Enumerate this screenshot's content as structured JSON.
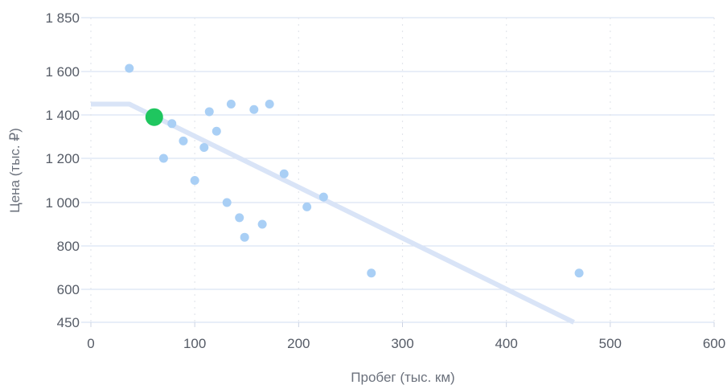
{
  "chart_data": {
    "type": "scatter",
    "xlabel": "Пробег (тыс. км)",
    "ylabel": "Цена (тыс. ₽)",
    "xlim": [
      0,
      600
    ],
    "ylim": [
      450,
      1850
    ],
    "x_ticks": [
      0,
      100,
      200,
      300,
      400,
      500,
      600
    ],
    "x_tick_labels": [
      "0",
      "100",
      "200",
      "300",
      "400",
      "500",
      "600"
    ],
    "y_ticks": [
      450,
      600,
      800,
      1000,
      1200,
      1400,
      1600,
      1850
    ],
    "y_tick_labels": [
      "450",
      "600",
      "800",
      "1 000",
      "1 200",
      "1 400",
      "1 600",
      "1 850"
    ],
    "grid": true,
    "points": [
      {
        "x": 37,
        "y": 1615
      },
      {
        "x": 78,
        "y": 1360
      },
      {
        "x": 89,
        "y": 1280
      },
      {
        "x": 70,
        "y": 1200
      },
      {
        "x": 100,
        "y": 1100
      },
      {
        "x": 114,
        "y": 1415
      },
      {
        "x": 121,
        "y": 1325
      },
      {
        "x": 109,
        "y": 1250
      },
      {
        "x": 135,
        "y": 1450
      },
      {
        "x": 157,
        "y": 1425
      },
      {
        "x": 172,
        "y": 1450
      },
      {
        "x": 131,
        "y": 1000
      },
      {
        "x": 143,
        "y": 930
      },
      {
        "x": 148,
        "y": 840
      },
      {
        "x": 165,
        "y": 900
      },
      {
        "x": 186,
        "y": 1130
      },
      {
        "x": 224,
        "y": 1025
      },
      {
        "x": 208,
        "y": 980
      },
      {
        "x": 270,
        "y": 675
      },
      {
        "x": 470,
        "y": 675
      }
    ],
    "highlight_point": {
      "x": 61,
      "y": 1390
    },
    "trend_line": [
      {
        "x": 0,
        "y": 1450
      },
      {
        "x": 37,
        "y": 1450
      },
      {
        "x": 465,
        "y": 450
      }
    ],
    "colors": {
      "points": "#a9cff5",
      "highlight": "#1fc65f",
      "trend_line": "#d9e4f7",
      "grid_major": "#dbe3f3",
      "grid_minor": "#e3e6ec",
      "axis": "#ccd3e3"
    }
  }
}
